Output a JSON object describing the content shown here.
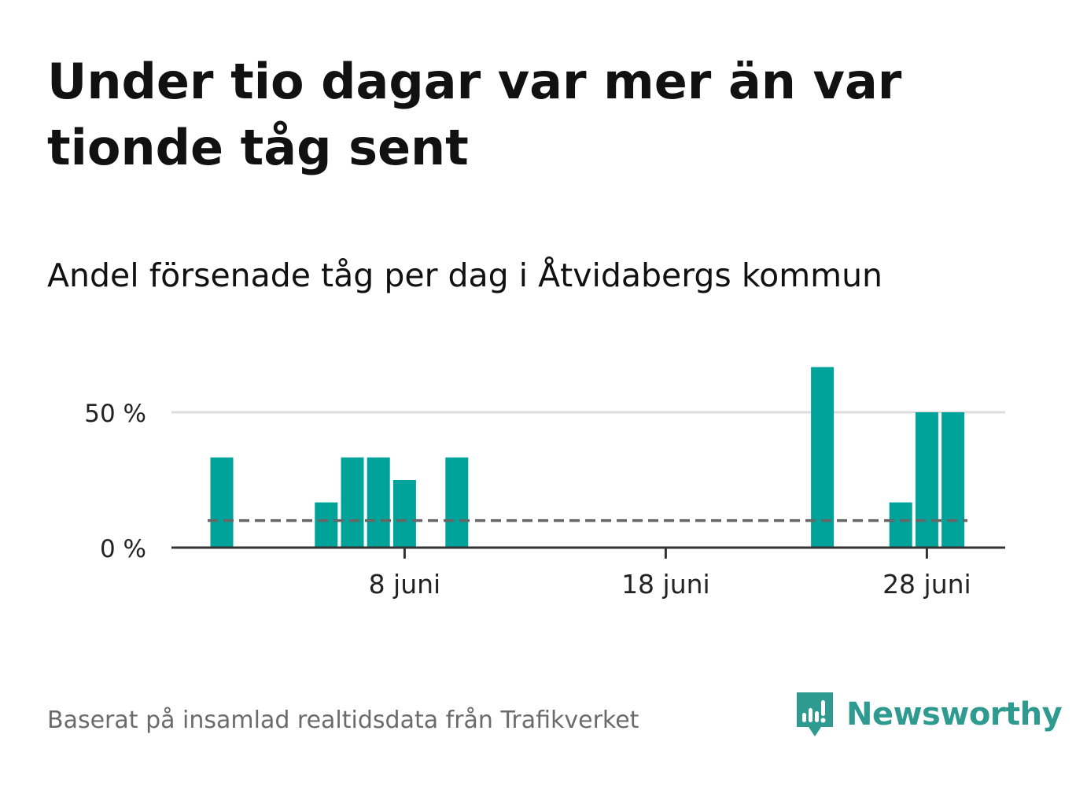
{
  "headline": "Under tio dagar var mer än var tionde tåg sent",
  "subtitle": "Andel försenade tåg per dag i Åtvidabergs kommun",
  "source": "Baserat på insamlad realtidsdata från Trafikverket",
  "brand": {
    "name": "Newsworthy",
    "color": "#2f9a8f",
    "icon": "bar-chart-speech-bubble-icon"
  },
  "colors": {
    "bar": "#00a39a",
    "reference_line": "#666666",
    "grid": "#dddddd",
    "axis": "#333333"
  },
  "chart_data": {
    "type": "bar",
    "x": [
      "2024-06-01",
      "2024-06-02",
      "2024-06-03",
      "2024-06-04",
      "2024-06-05",
      "2024-06-06",
      "2024-06-07",
      "2024-06-08",
      "2024-06-09",
      "2024-06-10",
      "2024-06-11",
      "2024-06-12",
      "2024-06-13",
      "2024-06-14",
      "2024-06-15",
      "2024-06-16",
      "2024-06-17",
      "2024-06-18",
      "2024-06-19",
      "2024-06-20",
      "2024-06-21",
      "2024-06-22",
      "2024-06-23",
      "2024-06-24",
      "2024-06-25",
      "2024-06-26",
      "2024-06-27",
      "2024-06-28",
      "2024-06-29"
    ],
    "values": [
      33.3,
      0,
      0,
      0,
      16.7,
      33.3,
      33.3,
      25,
      0,
      33.3,
      0,
      0,
      0,
      0,
      0,
      0,
      0,
      0,
      0,
      0,
      0,
      0,
      0,
      66.7,
      0,
      0,
      16.7,
      50,
      50
    ],
    "reference_value": 10,
    "ylim": [
      0,
      70
    ],
    "yticks": [
      {
        "value": 0,
        "label": "0 %"
      },
      {
        "value": 50,
        "label": "50 %"
      }
    ],
    "xticks": [
      {
        "date": "2024-06-08",
        "label": "8 juni"
      },
      {
        "date": "2024-06-18",
        "label": "18 juni"
      },
      {
        "date": "2024-06-28",
        "label": "28 juni"
      }
    ],
    "grid": true
  }
}
